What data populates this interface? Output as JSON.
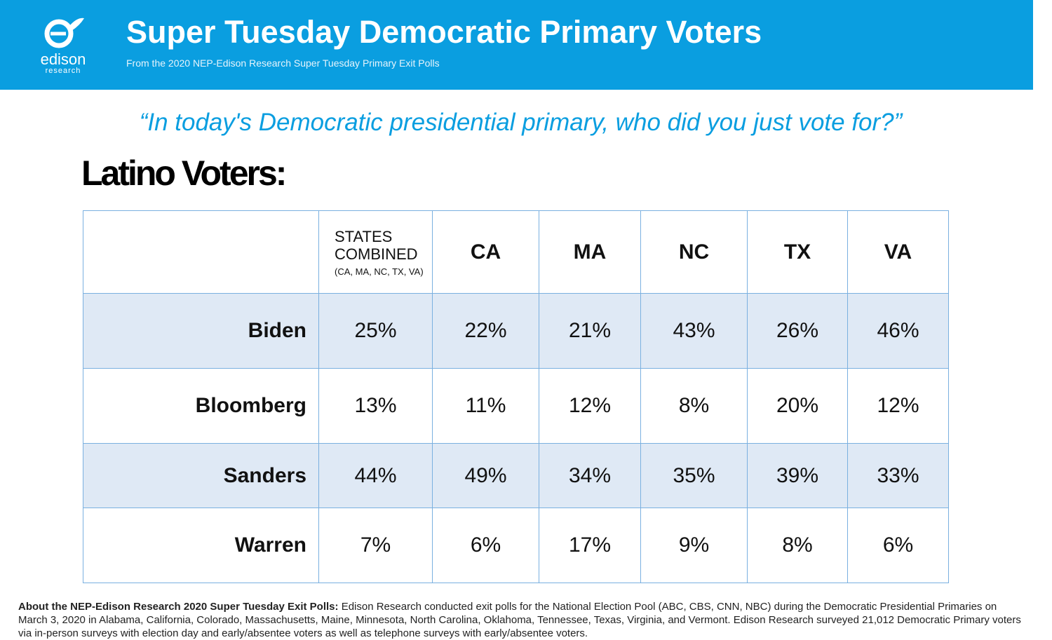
{
  "header": {
    "logo": {
      "name": "edison",
      "tagline": "research"
    },
    "title": "Super Tuesday Democratic Primary Voters",
    "subtitle": "From the 2020 NEP-Edison Research Super Tuesday Primary Exit Polls"
  },
  "question": "“In today's Democratic presidential primary, who did you just vote for?”",
  "group": "Latino Voters:",
  "table": {
    "columns": [
      {
        "label": "STATES COMBINED",
        "note": "(CA, MA, NC, TX, VA)"
      },
      {
        "label": "CA"
      },
      {
        "label": "MA"
      },
      {
        "label": "NC"
      },
      {
        "label": "TX"
      },
      {
        "label": "VA"
      }
    ],
    "rows": [
      {
        "label": "Biden",
        "values": [
          "25%",
          "22%",
          "21%",
          "43%",
          "26%",
          "46%"
        ]
      },
      {
        "label": "Bloomberg",
        "values": [
          "13%",
          "11%",
          "12%",
          "8%",
          "20%",
          "12%"
        ]
      },
      {
        "label": "Sanders",
        "values": [
          "44%",
          "49%",
          "34%",
          "35%",
          "39%",
          "33%"
        ]
      },
      {
        "label": "Warren",
        "values": [
          "7%",
          "6%",
          "17%",
          "9%",
          "8%",
          "6%"
        ]
      }
    ]
  },
  "footer": {
    "heading": "About the NEP-Edison Research 2020 Super Tuesday Exit Polls:",
    "text": "Edison Research conducted exit polls for the National Election Pool (ABC, CBS, CNN, NBC) during the Democratic Presidential Primaries on March 3, 2020 in Alabama, California, Colorado, Massachusetts, Maine, Minnesota, North Carolina, Oklahoma, Tennessee, Texas, Virginia, and Vermont. Edison Research surveyed 21,012 Democratic Primary voters via in-person surveys with election day and early/absentee voters as well as telephone surveys with early/absentee voters."
  }
}
